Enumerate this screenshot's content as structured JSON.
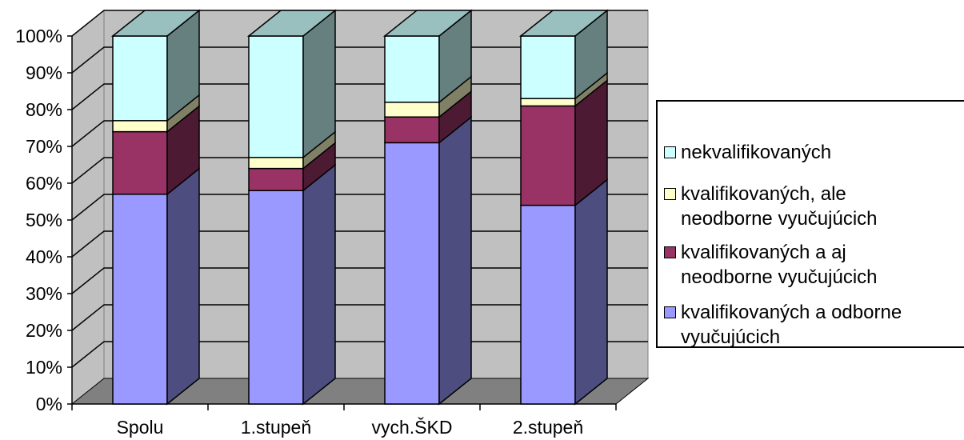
{
  "chart_data": {
    "type": "bar",
    "stacked": true,
    "three_d": true,
    "categories": [
      "Spolu",
      "1.stupeň",
      "vych.ŠKD",
      "2.stupeň"
    ],
    "ylim": [
      0,
      100
    ],
    "yticks": [
      "0%",
      "10%",
      "20%",
      "30%",
      "40%",
      "50%",
      "60%",
      "70%",
      "80%",
      "90%",
      "100%"
    ],
    "grid": true,
    "legend_position": "right",
    "series": [
      {
        "name": "kvalifikovaných a odborne vyučujúcich",
        "color": "#9999ff",
        "values": [
          57,
          58,
          71,
          54
        ]
      },
      {
        "name": "kvalifikovaných a aj neodborne vyučujúcich",
        "color": "#993366",
        "values": [
          17,
          6,
          7,
          27
        ]
      },
      {
        "name": "kvalifikovaných, ale neodborne vyučujúcich",
        "color": "#ffffcc",
        "values": [
          3,
          3,
          4,
          2
        ]
      },
      {
        "name": "nekvalifikovaných",
        "color": "#ccffff",
        "values": [
          23,
          33,
          18,
          17
        ]
      }
    ]
  },
  "legend_items": [
    {
      "text": "nekvalifikovaných",
      "color": "#ccffff"
    },
    {
      "text": "kvalifikovaných, ale\nneodborne vyučujúcich",
      "color": "#ffffcc"
    },
    {
      "text": "kvalifikovaných a aj\nneodborne vyučujúcich",
      "color": "#993366"
    },
    {
      "text": "kvalifikovaných a odborne\nvyučujúcich",
      "color": "#9999ff"
    }
  ]
}
